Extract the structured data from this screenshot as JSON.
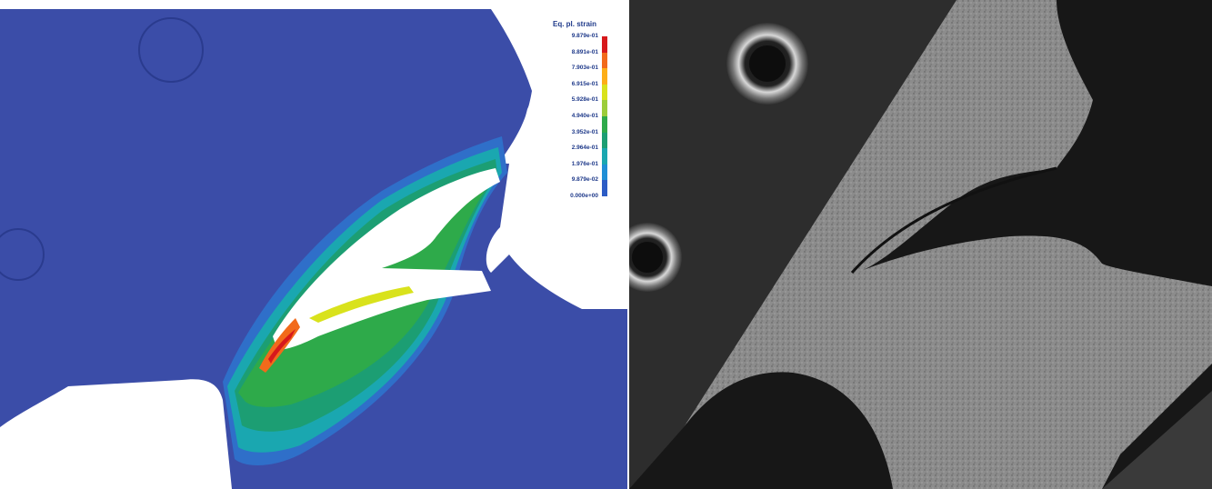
{
  "legend": {
    "title": "Eq. pl. strain",
    "labels": [
      "9.879e-01",
      "8.891e-01",
      "7.903e-01",
      "6.915e-01",
      "5.928e-01",
      "4.940e-01",
      "3.952e-01",
      "2.964e-01",
      "1.976e-01",
      "9.879e-02",
      "0.000e+00"
    ],
    "colors": [
      "#d7191c",
      "#f26a1b",
      "#fdae17",
      "#d9e21c",
      "#9ccd3a",
      "#2eaa4a",
      "#1c9e73",
      "#1aa7b0",
      "#1f8fd6",
      "#2c5cc5"
    ]
  }
}
